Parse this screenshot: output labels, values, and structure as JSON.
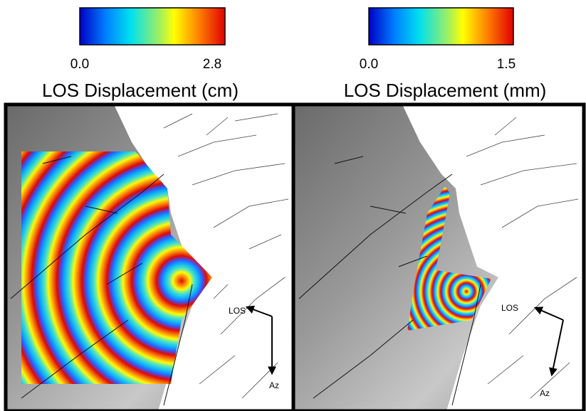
{
  "panels": [
    {
      "colorbar": {
        "min_label": "0.0",
        "max_label": "2.8"
      },
      "title": "LOS Displacement (cm)",
      "arrows": {
        "los": "LOS",
        "az": "Az"
      }
    },
    {
      "colorbar": {
        "min_label": "0.0",
        "max_label": "1.5"
      },
      "title": "LOS Displacement (mm)",
      "arrows": {
        "los": "LOS",
        "az": "Az"
      }
    }
  ]
}
